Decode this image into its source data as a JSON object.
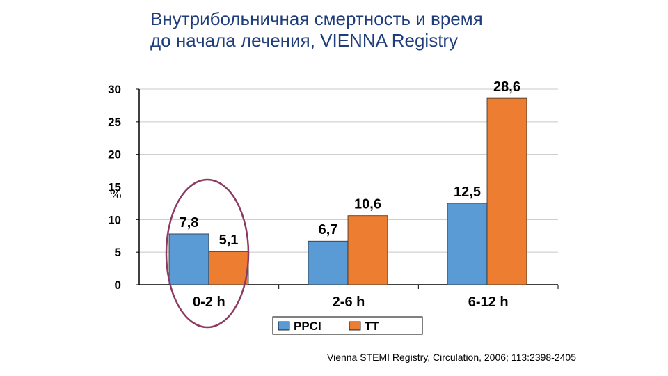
{
  "title": {
    "line1": "Внутрибольничная смертность и время",
    "line2": "до начала лечения, VIENNA Registry"
  },
  "citation": "Vienna STEMI Registry, Circulation, 2006; 113:2398-2405",
  "chart_data": {
    "type": "bar",
    "ylabel": "%",
    "ylim": [
      0,
      30
    ],
    "yticks": [
      0,
      5,
      10,
      15,
      20,
      25,
      30
    ],
    "grid": true,
    "legend_position": "bottom",
    "categories": [
      "0-2 h",
      "2-6 h",
      "6-12 h"
    ],
    "series": [
      {
        "name": "PPCI",
        "color": "#5b9bd5",
        "values": [
          7.8,
          6.7,
          12.5
        ],
        "labels": [
          "7,8",
          "6,7",
          "12,5"
        ]
      },
      {
        "name": "TT",
        "color": "#ed7d31",
        "values": [
          5.1,
          10.6,
          28.6
        ],
        "labels": [
          "5,1",
          "10,6",
          "28,6"
        ]
      }
    ],
    "highlight": {
      "category": "0-2 h",
      "shape": "ellipse",
      "color": "#8b3a62"
    }
  }
}
